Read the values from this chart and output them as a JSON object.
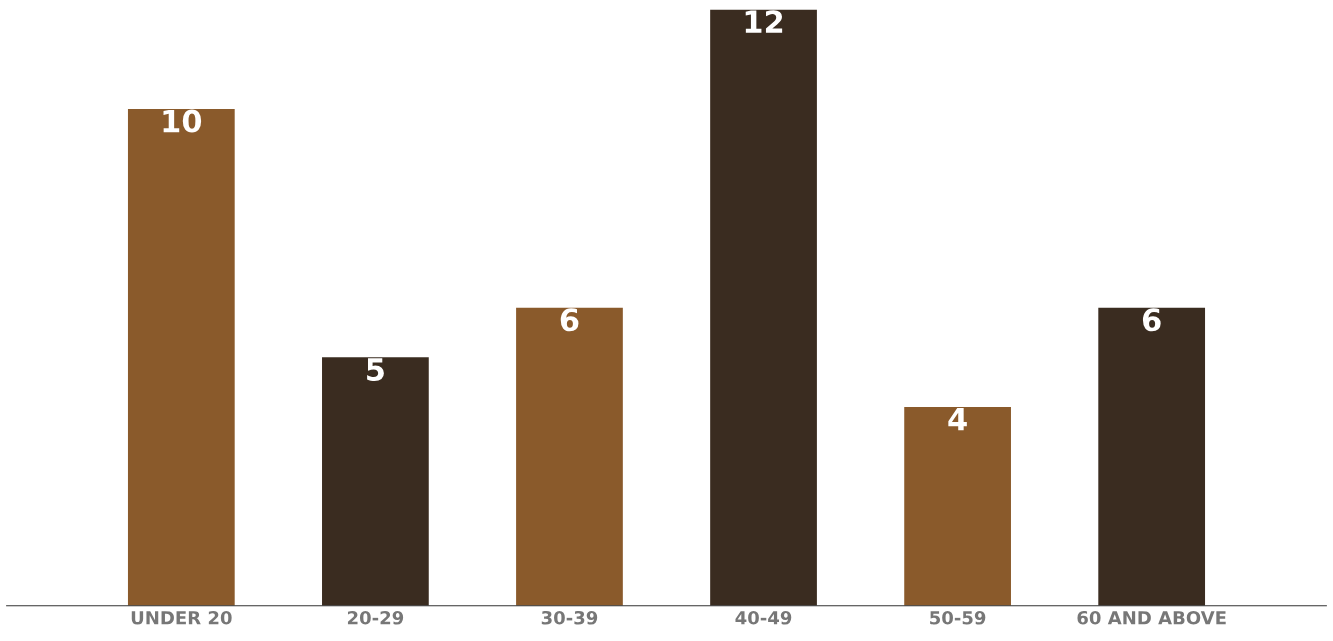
{
  "chart_data": {
    "type": "bar",
    "categories": [
      "UNDER 20",
      "20-29",
      "30-39",
      "40-49",
      "50-59",
      "60 AND ABOVE"
    ],
    "values": [
      10,
      5,
      6,
      12,
      4,
      6
    ],
    "colors": [
      "#8a5a2b",
      "#3a2c20",
      "#8a5a2b",
      "#3a2c20",
      "#8a5a2b",
      "#3a2c20"
    ],
    "data_labels": true,
    "tick_labels": "x",
    "grid": false,
    "legend": false
  }
}
